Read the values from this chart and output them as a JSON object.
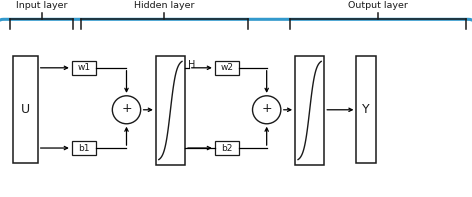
{
  "title_input": "Input layer",
  "title_hidden": "Hidden layer",
  "title_output": "Output layer",
  "bg_color": "#ffffff",
  "blue_color": "#3399CC",
  "black": "#1a1a1a",
  "fig_width": 4.72,
  "fig_height": 1.97,
  "dpi": 100
}
